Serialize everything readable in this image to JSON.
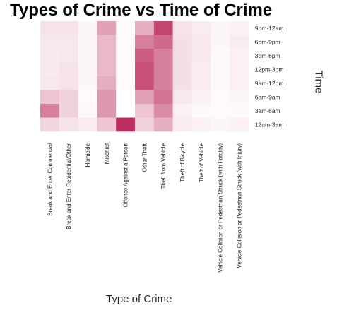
{
  "chart_data": {
    "type": "heatmap",
    "title": "Types of Crime vs Time of Crime",
    "xlabel": "Type of Crime",
    "ylabel": "Time",
    "x": [
      "Break and Enter Commercial",
      "Break and Enter Residential/Other",
      "Homicide",
      "Mischief",
      "Offence Against a Person",
      "Other Theft",
      "Theft from Vehicle",
      "Theft of Bicycle",
      "Theft of Vehicle",
      "Vehicle Collision or Pedestrian Struck (with Fatality)",
      "Vehicle Collision or Pedestrian Struck (with Injury)"
    ],
    "y": [
      "9pm-12am",
      "6pm-9pm",
      "3pm-6pm",
      "12pm-3pm",
      "9am-12pm",
      "6am-9am",
      "3am-6am",
      "12am-3am"
    ],
    "values": [
      [
        0.12,
        0.12,
        0.04,
        0.4,
        0.02,
        0.35,
        0.8,
        0.12,
        0.08,
        0.04,
        0.06
      ],
      [
        0.1,
        0.1,
        0.04,
        0.3,
        0.02,
        0.55,
        0.65,
        0.14,
        0.1,
        0.04,
        0.08
      ],
      [
        0.09,
        0.1,
        0.04,
        0.3,
        0.02,
        0.7,
        0.55,
        0.14,
        0.1,
        0.03,
        0.06
      ],
      [
        0.09,
        0.12,
        0.04,
        0.3,
        0.02,
        0.75,
        0.55,
        0.14,
        0.08,
        0.03,
        0.06
      ],
      [
        0.1,
        0.12,
        0.04,
        0.35,
        0.02,
        0.75,
        0.55,
        0.14,
        0.08,
        0.03,
        0.06
      ],
      [
        0.25,
        0.2,
        0.02,
        0.45,
        0.0,
        0.4,
        0.6,
        0.1,
        0.06,
        0.02,
        0.04
      ],
      [
        0.55,
        0.2,
        0.03,
        0.45,
        0.0,
        0.25,
        0.5,
        0.06,
        0.03,
        0.02,
        0.03
      ],
      [
        0.18,
        0.12,
        0.08,
        0.25,
        0.9,
        0.2,
        0.35,
        0.08,
        0.06,
        0.04,
        0.06
      ]
    ],
    "value_scale": "relative intensity 0-1 (read from cell shading, no color bar shown)",
    "colors": {
      "low": "#ffffff",
      "high": "#b5174f"
    },
    "legend": "none",
    "grid": false
  }
}
